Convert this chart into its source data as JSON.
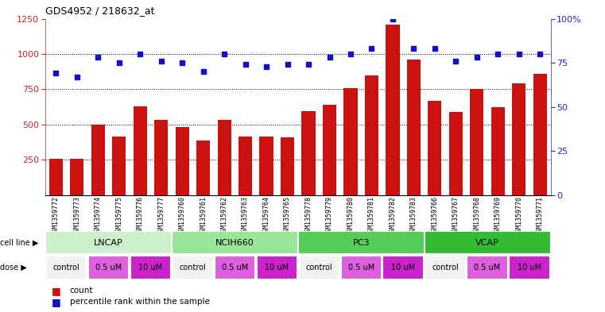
{
  "title": "GDS4952 / 218632_at",
  "samples": [
    "GSM1359772",
    "GSM1359773",
    "GSM1359774",
    "GSM1359775",
    "GSM1359776",
    "GSM1359777",
    "GSM1359760",
    "GSM1359761",
    "GSM1359762",
    "GSM1359763",
    "GSM1359764",
    "GSM1359765",
    "GSM1359778",
    "GSM1359779",
    "GSM1359780",
    "GSM1359781",
    "GSM1359782",
    "GSM1359783",
    "GSM1359766",
    "GSM1359767",
    "GSM1359768",
    "GSM1359769",
    "GSM1359770",
    "GSM1359771"
  ],
  "bar_values": [
    255,
    255,
    500,
    415,
    630,
    535,
    480,
    385,
    530,
    415,
    415,
    410,
    595,
    640,
    760,
    850,
    1210,
    960,
    670,
    590,
    755,
    625,
    790,
    860
  ],
  "dot_values": [
    69,
    67,
    78,
    75,
    80,
    76,
    75,
    70,
    80,
    74,
    73,
    74,
    74,
    78,
    80,
    83,
    100,
    83,
    83,
    76,
    78,
    80,
    80,
    80
  ],
  "cell_lines": [
    {
      "name": "LNCAP",
      "start": 0,
      "end": 5,
      "color": "#ccf0cc"
    },
    {
      "name": "NCIH660",
      "start": 6,
      "end": 11,
      "color": "#99e699"
    },
    {
      "name": "PC3",
      "start": 12,
      "end": 17,
      "color": "#55cc55"
    },
    {
      "name": "VCAP",
      "start": 18,
      "end": 23,
      "color": "#33bb33"
    }
  ],
  "dose_groups": [
    {
      "name": "control",
      "start": 0,
      "end": 1,
      "color": "#f2f2f2"
    },
    {
      "name": "0.5 uM",
      "start": 2,
      "end": 3,
      "color": "#df60df"
    },
    {
      "name": "10 uM",
      "start": 4,
      "end": 5,
      "color": "#cc22cc"
    },
    {
      "name": "control",
      "start": 6,
      "end": 7,
      "color": "#f2f2f2"
    },
    {
      "name": "0.5 uM",
      "start": 8,
      "end": 9,
      "color": "#df60df"
    },
    {
      "name": "10 uM",
      "start": 10,
      "end": 11,
      "color": "#cc22cc"
    },
    {
      "name": "control",
      "start": 12,
      "end": 13,
      "color": "#f2f2f2"
    },
    {
      "name": "0.5 uM",
      "start": 14,
      "end": 15,
      "color": "#df60df"
    },
    {
      "name": "10 uM",
      "start": 16,
      "end": 17,
      "color": "#cc22cc"
    },
    {
      "name": "control",
      "start": 18,
      "end": 19,
      "color": "#f2f2f2"
    },
    {
      "name": "0.5 uM",
      "start": 20,
      "end": 21,
      "color": "#df60df"
    },
    {
      "name": "10 uM",
      "start": 22,
      "end": 23,
      "color": "#cc22cc"
    }
  ],
  "bar_color": "#cc1111",
  "dot_color": "#1111cc",
  "left_ylim": [
    0,
    1250
  ],
  "left_yticks": [
    250,
    500,
    750,
    1000,
    1250
  ],
  "right_ylim": [
    0,
    100
  ],
  "right_yticks": [
    0,
    25,
    50,
    75,
    100
  ],
  "grid_values": [
    250,
    500,
    750,
    1000
  ],
  "bg_color": "#ffffff"
}
